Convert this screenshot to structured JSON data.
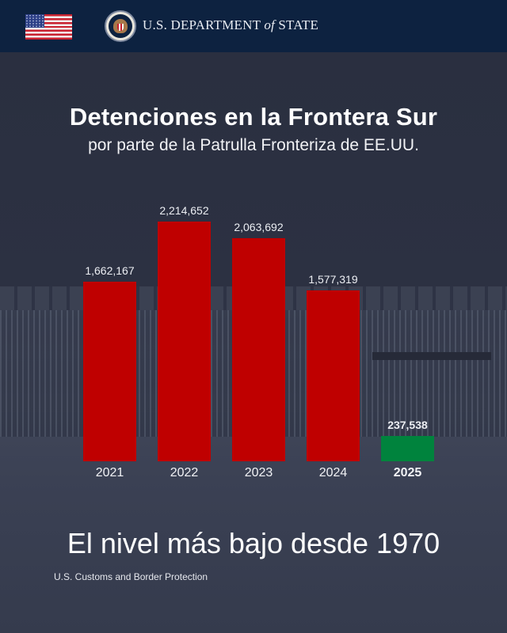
{
  "header": {
    "flag_icon": "us-flag-icon",
    "seal_icon": "department-of-state-seal-icon",
    "org_name_pre": "U.S. DEPARTMENT ",
    "org_name_of": "of",
    "org_name_post": " STATE"
  },
  "title": "Detenciones en la Frontera Sur",
  "subtitle": "por parte de la Patrulla Fronteriza de EE.UU.",
  "tagline": "El nivel más bajo desde 1970",
  "source": "U.S. Customs and Border Protection",
  "colors": {
    "header_bg": "#0d2240",
    "bar_red": "#bf0000",
    "bar_green": "#00833d",
    "background": "#2b3041"
  },
  "chart_data": {
    "type": "bar",
    "title": "Detenciones en la Frontera Sur",
    "subtitle": "por parte de la Patrulla Fronteriza de EE.UU.",
    "categories": [
      "2021",
      "2022",
      "2023",
      "2024",
      "2025"
    ],
    "values": [
      1662167,
      2214652,
      2063692,
      1577319,
      237538
    ],
    "value_labels": [
      "1,662,167",
      "2,214,652",
      "2,063,692",
      "1,577,319",
      "237,538"
    ],
    "bar_colors": [
      "#bf0000",
      "#bf0000",
      "#bf0000",
      "#bf0000",
      "#00833d"
    ],
    "highlight": "2025",
    "xlabel": "",
    "ylabel": "",
    "grid": false,
    "legend": null,
    "annotation": "El nivel más bajo desde 1970",
    "source": "U.S. Customs and Border Protection"
  }
}
